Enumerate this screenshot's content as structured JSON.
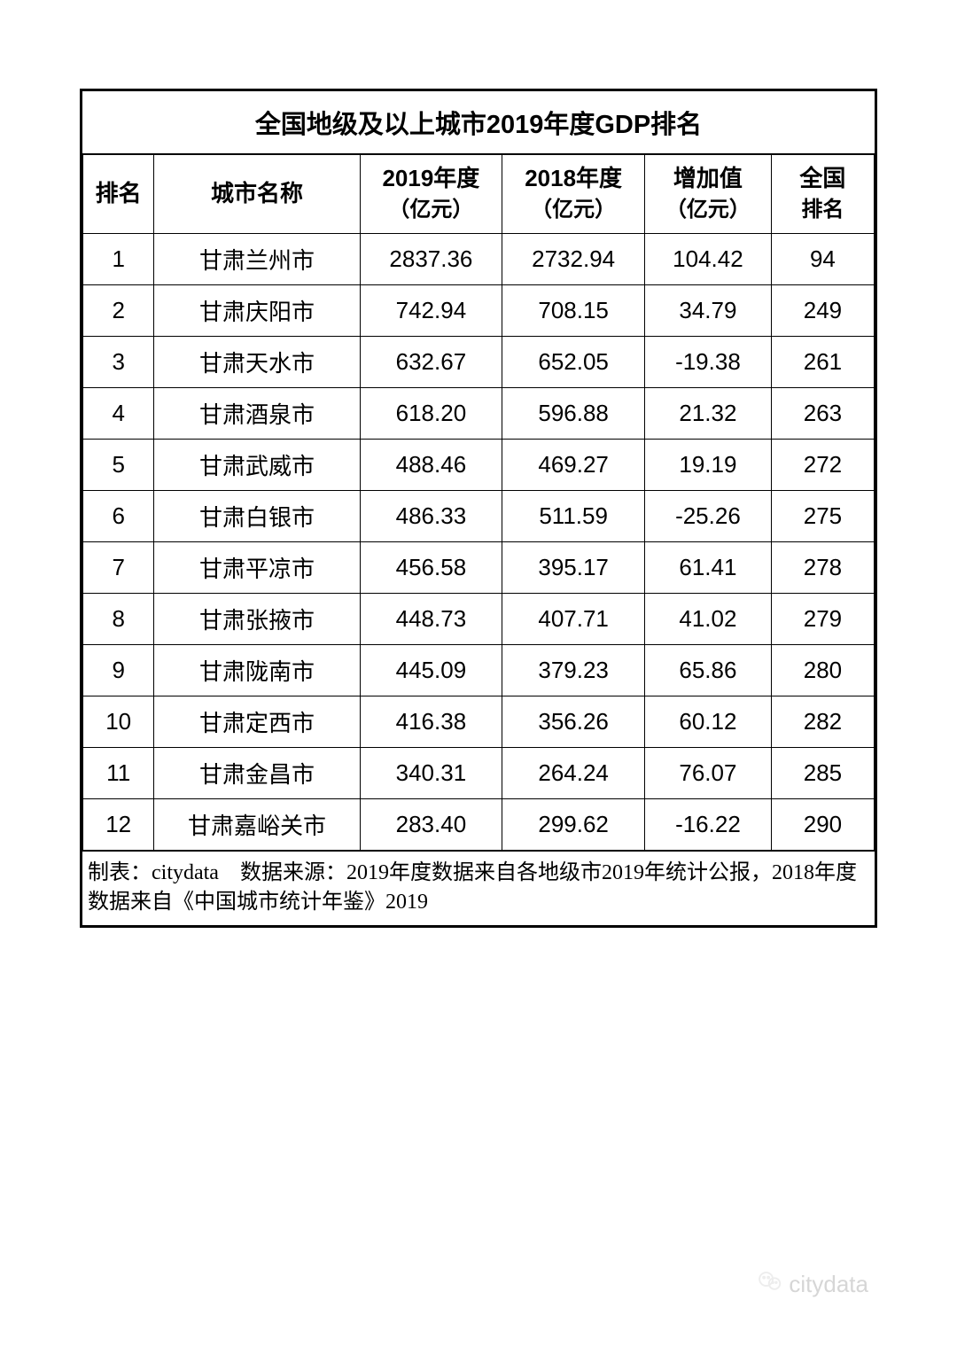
{
  "table": {
    "title": "全国地级及以上城市2019年度GDP排名",
    "columns": {
      "rank": "排名",
      "city": "城市名称",
      "y2019_line1": "2019年度",
      "y2019_line2": "（亿元）",
      "y2018_line1": "2018年度",
      "y2018_line2": "（亿元）",
      "delta_line1": "增加值",
      "delta_line2": "（亿元）",
      "nrank_line1": "全国",
      "nrank_line2": "排名"
    },
    "rows": [
      {
        "rank": "1",
        "city": "甘肃兰州市",
        "y2019": "2837.36",
        "y2018": "2732.94",
        "delta": "104.42",
        "nrank": "94"
      },
      {
        "rank": "2",
        "city": "甘肃庆阳市",
        "y2019": "742.94",
        "y2018": "708.15",
        "delta": "34.79",
        "nrank": "249"
      },
      {
        "rank": "3",
        "city": "甘肃天水市",
        "y2019": "632.67",
        "y2018": "652.05",
        "delta": "-19.38",
        "nrank": "261"
      },
      {
        "rank": "4",
        "city": "甘肃酒泉市",
        "y2019": "618.20",
        "y2018": "596.88",
        "delta": "21.32",
        "nrank": "263"
      },
      {
        "rank": "5",
        "city": "甘肃武威市",
        "y2019": "488.46",
        "y2018": "469.27",
        "delta": "19.19",
        "nrank": "272"
      },
      {
        "rank": "6",
        "city": "甘肃白银市",
        "y2019": "486.33",
        "y2018": "511.59",
        "delta": "-25.26",
        "nrank": "275"
      },
      {
        "rank": "7",
        "city": "甘肃平凉市",
        "y2019": "456.58",
        "y2018": "395.17",
        "delta": "61.41",
        "nrank": "278"
      },
      {
        "rank": "8",
        "city": "甘肃张掖市",
        "y2019": "448.73",
        "y2018": "407.71",
        "delta": "41.02",
        "nrank": "279"
      },
      {
        "rank": "9",
        "city": "甘肃陇南市",
        "y2019": "445.09",
        "y2018": "379.23",
        "delta": "65.86",
        "nrank": "280"
      },
      {
        "rank": "10",
        "city": "甘肃定西市",
        "y2019": "416.38",
        "y2018": "356.26",
        "delta": "60.12",
        "nrank": "282"
      },
      {
        "rank": "11",
        "city": "甘肃金昌市",
        "y2019": "340.31",
        "y2018": "264.24",
        "delta": "76.07",
        "nrank": "285"
      },
      {
        "rank": "12",
        "city": "甘肃嘉峪关市",
        "y2019": "283.40",
        "y2018": "299.62",
        "delta": "-16.22",
        "nrank": "290"
      }
    ],
    "footer": "制表：citydata　数据来源：2019年度数据来自各地级市2019年统计公报，2018年度数据来自《中国城市统计年鉴》2019"
  },
  "watermark": {
    "text": "citydata"
  },
  "styling": {
    "border_color": "#000000",
    "outer_border_width": 3,
    "inner_border_width": 1,
    "background_color": "#ffffff",
    "title_fontsize": 29,
    "header_fontsize": 26,
    "cell_fontsize": 26,
    "footer_fontsize": 24,
    "watermark_color": "#d6d6d6",
    "watermark_fontsize": 26,
    "col_widths_pct": [
      9,
      26,
      18,
      18,
      16,
      13
    ]
  }
}
